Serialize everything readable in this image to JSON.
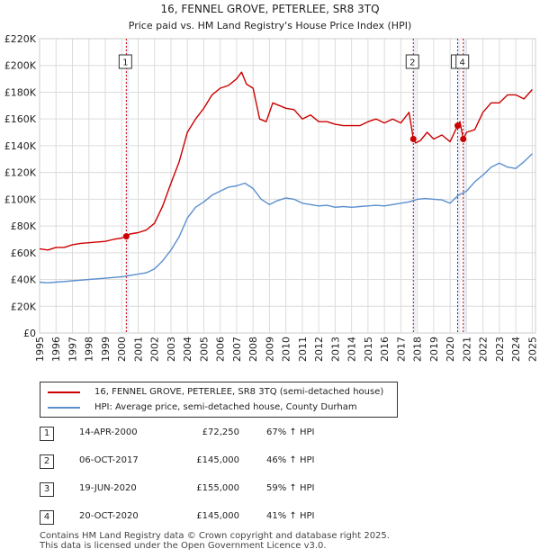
{
  "chart_data": {
    "type": "line",
    "title": "16, FENNEL GROVE, PETERLEE, SR8 3TQ",
    "subtitle": "Price paid vs. HM Land Registry's House Price Index (HPI)",
    "xlabel": "",
    "ylabel": "",
    "xlim": [
      1995,
      2025.2
    ],
    "ylim": [
      0,
      220000
    ],
    "y_ticks": [
      {
        "value": 0,
        "label": "£0"
      },
      {
        "value": 20000,
        "label": "£20K"
      },
      {
        "value": 40000,
        "label": "£40K"
      },
      {
        "value": 60000,
        "label": "£60K"
      },
      {
        "value": 80000,
        "label": "£80K"
      },
      {
        "value": 100000,
        "label": "£100K"
      },
      {
        "value": 120000,
        "label": "£120K"
      },
      {
        "value": 140000,
        "label": "£140K"
      },
      {
        "value": 160000,
        "label": "£160K"
      },
      {
        "value": 180000,
        "label": "£180K"
      },
      {
        "value": 200000,
        "label": "£200K"
      },
      {
        "value": 220000,
        "label": "£220K"
      }
    ],
    "x_ticks": [
      "1995",
      "1996",
      "1997",
      "1998",
      "1999",
      "2000",
      "2001",
      "2002",
      "2003",
      "2004",
      "2005",
      "2006",
      "2007",
      "2008",
      "2009",
      "2010",
      "2011",
      "2012",
      "2013",
      "2014",
      "2015",
      "2016",
      "2017",
      "2018",
      "2019",
      "2020",
      "2021",
      "2022",
      "2023",
      "2024",
      "2025"
    ],
    "grid": true,
    "series": [
      {
        "name": "16, FENNEL GROVE, PETERLEE, SR8 3TQ (semi-detached house)",
        "color": "#cc0000",
        "x": [
          1995.0,
          1995.5,
          1996.0,
          1996.5,
          1997.0,
          1997.5,
          1998.0,
          1998.5,
          1999.0,
          1999.5,
          2000.0,
          2000.28,
          2000.5,
          2001.0,
          2001.5,
          2002.0,
          2002.5,
          2003.0,
          2003.5,
          2004.0,
          2004.5,
          2005.0,
          2005.5,
          2006.0,
          2006.5,
          2007.0,
          2007.3,
          2007.6,
          2008.0,
          2008.4,
          2008.8,
          2009.2,
          2009.6,
          2010.0,
          2010.5,
          2011.0,
          2011.5,
          2012.0,
          2012.5,
          2013.0,
          2013.5,
          2014.0,
          2014.5,
          2015.0,
          2015.5,
          2016.0,
          2016.5,
          2017.0,
          2017.5,
          2017.76,
          2017.9,
          2018.2,
          2018.6,
          2019.0,
          2019.5,
          2020.0,
          2020.46,
          2020.6,
          2020.8,
          2021.0,
          2021.5,
          2022.0,
          2022.5,
          2023.0,
          2023.5,
          2024.0,
          2024.5,
          2025.0
        ],
        "values": [
          63000,
          62000,
          64000,
          64000,
          66000,
          67000,
          67500,
          68000,
          68500,
          70000,
          71000,
          72250,
          74000,
          75000,
          77000,
          82000,
          95000,
          112000,
          128000,
          150000,
          160000,
          168000,
          178000,
          183000,
          185000,
          190000,
          195000,
          186000,
          183000,
          160000,
          158000,
          172000,
          170000,
          168000,
          167000,
          160000,
          163000,
          158000,
          158000,
          156000,
          155000,
          155000,
          155000,
          158000,
          160000,
          157000,
          160000,
          157000,
          165000,
          145000,
          142000,
          144000,
          150000,
          145000,
          148000,
          143000,
          155000,
          158000,
          145000,
          150000,
          152000,
          165000,
          172000,
          172000,
          178000,
          178000,
          175000,
          182000
        ]
      },
      {
        "name": "HPI: Average price, semi-detached house, County Durham",
        "color": "#5a8fcf",
        "x": [
          1995.0,
          1995.5,
          1996.0,
          1996.5,
          1997.0,
          1997.5,
          1998.0,
          1998.5,
          1999.0,
          1999.5,
          2000.0,
          2000.5,
          2001.0,
          2001.5,
          2002.0,
          2002.5,
          2003.0,
          2003.5,
          2004.0,
          2004.5,
          2005.0,
          2005.5,
          2006.0,
          2006.5,
          2007.0,
          2007.5,
          2008.0,
          2008.5,
          2009.0,
          2009.5,
          2010.0,
          2010.5,
          2011.0,
          2011.5,
          2012.0,
          2012.5,
          2013.0,
          2013.5,
          2014.0,
          2014.5,
          2015.0,
          2015.5,
          2016.0,
          2016.5,
          2017.0,
          2017.5,
          2018.0,
          2018.5,
          2019.0,
          2019.5,
          2020.0,
          2020.5,
          2021.0,
          2021.5,
          2022.0,
          2022.5,
          2023.0,
          2023.5,
          2024.0,
          2024.5,
          2025.0
        ],
        "values": [
          38000,
          37500,
          38000,
          38500,
          39000,
          39500,
          40000,
          40500,
          41000,
          41500,
          42000,
          43000,
          44000,
          45000,
          48000,
          54000,
          62000,
          72000,
          86000,
          94000,
          98000,
          103000,
          106000,
          109000,
          110000,
          112000,
          108000,
          100000,
          96000,
          99000,
          101000,
          100000,
          97000,
          96000,
          95000,
          95500,
          94000,
          94500,
          94000,
          94500,
          95000,
          95500,
          95000,
          96000,
          97000,
          98000,
          100000,
          100500,
          100000,
          99500,
          97000,
          103000,
          106000,
          113000,
          118000,
          124000,
          127000,
          124000,
          123000,
          128000,
          134000
        ]
      }
    ],
    "sale_markers": [
      {
        "label": "1",
        "x": 2000.28,
        "value": 72250
      },
      {
        "label": "2",
        "x": 2017.76,
        "value": 145000
      },
      {
        "label": "3",
        "x": 2020.46,
        "value": 155000
      },
      {
        "label": "4",
        "x": 2020.8,
        "value": 145000
      }
    ]
  },
  "legend": {
    "property_label": "16, FENNEL GROVE, PETERLEE, SR8 3TQ (semi-detached house)",
    "hpi_label": "HPI: Average price, semi-detached house, County Durham"
  },
  "transactions": [
    {
      "num": "1",
      "date": "14-APR-2000",
      "price": "£72,250",
      "hpi": "67% ↑ HPI"
    },
    {
      "num": "2",
      "date": "06-OCT-2017",
      "price": "£145,000",
      "hpi": "46% ↑ HPI"
    },
    {
      "num": "3",
      "date": "19-JUN-2020",
      "price": "£155,000",
      "hpi": "59% ↑ HPI"
    },
    {
      "num": "4",
      "date": "20-OCT-2020",
      "price": "£145,000",
      "hpi": "41% ↑ HPI"
    }
  ],
  "footer": {
    "line1": "Contains HM Land Registry data © Crown copyright and database right 2025.",
    "line2": "This data is licensed under the Open Government Licence v3.0."
  }
}
